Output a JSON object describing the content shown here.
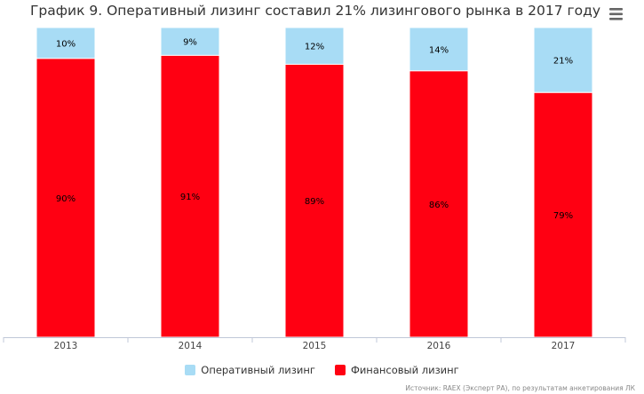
{
  "title": "График 9. Оперативный лизинг составил 21% лизингового рынка в 2017 году",
  "menu_icon": "hamburger-menu-icon",
  "source": "Источник: RAEX (Эксперт РА), по результатам анкетирования ЛК",
  "colors": {
    "operational": "#a8dcf5",
    "financial": "#ff0012",
    "axis": "#c0c8d8"
  },
  "chart_data": {
    "type": "bar",
    "stacked": true,
    "categories": [
      "2013",
      "2014",
      "2015",
      "2016",
      "2017"
    ],
    "series": [
      {
        "name": "Финансовый лизинг",
        "values": [
          90,
          91,
          89,
          86,
          79
        ],
        "labels": [
          "90%",
          "91%",
          "89%",
          "86%",
          "79%"
        ]
      },
      {
        "name": "Оперативный лизинг",
        "values": [
          10,
          9,
          12,
          14,
          21
        ],
        "labels": [
          "10%",
          "9%",
          "12%",
          "14%",
          "21%"
        ]
      }
    ],
    "ylim": [
      0,
      100
    ],
    "grid": false,
    "legend_position": "bottom"
  },
  "legend": {
    "operational_label": "Оперативный лизинг",
    "financial_label": "Финансовый лизинг"
  }
}
